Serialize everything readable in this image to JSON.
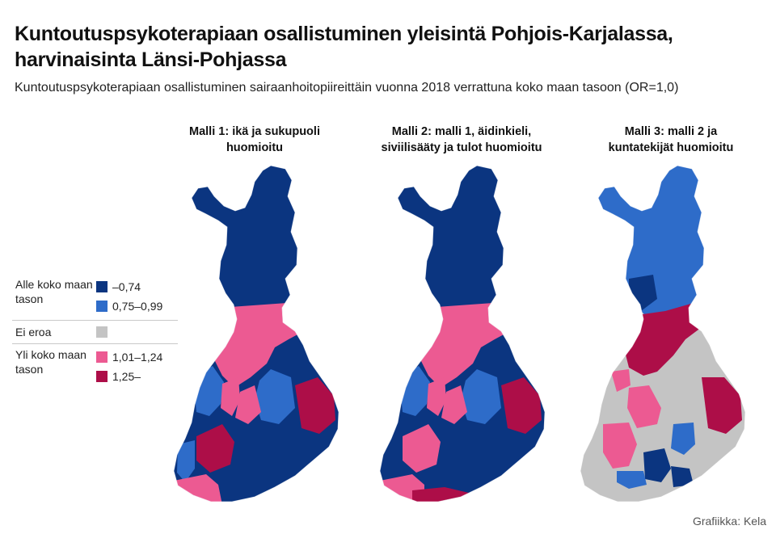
{
  "title_line1": "Kuntoutuspsykoterapiaan osallistuminen yleisintä Pohjois-Karjalassa,",
  "title_line2": "harvinaisinta Länsi-Pohjassa",
  "subtitle": "Kuntoutuspsykoterapiaan osallistuminen sairaanhoitopiireittäin vuonna 2018 verrattuna koko maan tasoon (OR=1,0)",
  "maps": [
    {
      "title_line1": "Malli 1: ikä ja sukupuoli",
      "title_line2": "huomioitu"
    },
    {
      "title_line1": "Malli 2: malli 1, äidinkieli,",
      "title_line2": "siviilisääty ja tulot huomioitu"
    },
    {
      "title_line1": "Malli 3: malli 2 ja",
      "title_line2": "kuntatekijät huomioitu"
    }
  ],
  "legend": {
    "below_label": "Alle koko maan tason",
    "below_items": [
      {
        "label": "–0,74",
        "color": "#0b3580"
      },
      {
        "label": "0,75–0,99",
        "color": "#2e6cc9"
      }
    ],
    "none_label": "Ei eroa",
    "none_color": "#c4c4c4",
    "above_label": "Yli koko maan tason",
    "above_items": [
      {
        "label": "1,01–1,24",
        "color": "#ec5a92"
      },
      {
        "label": "1,25–",
        "color": "#ad0e48"
      }
    ]
  },
  "source": "Grafiikka: Kela"
}
